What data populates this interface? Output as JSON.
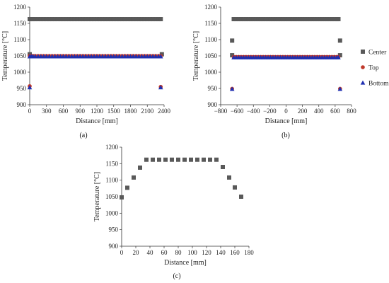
{
  "legend": {
    "position": "right",
    "entries": [
      {
        "name": "Center",
        "marker": "square",
        "color": "#595959"
      },
      {
        "name": "Top",
        "marker": "circle",
        "color": "#c0392b"
      },
      {
        "name": "Bottom",
        "marker": "triangle",
        "color": "#1f2fb0"
      }
    ]
  },
  "chart_data": [
    {
      "type": "scatter",
      "panel": "(a)",
      "title": "",
      "xlabel": "Distance [mm]",
      "ylabel": "Temperature [°C]",
      "xlim": [
        0,
        2400
      ],
      "ylim": [
        900,
        1200
      ],
      "xticks": [
        0,
        300,
        600,
        900,
        1200,
        1500,
        1800,
        2100,
        2400
      ],
      "yticks": [
        900,
        950,
        1000,
        1050,
        1100,
        1150,
        1200
      ],
      "grid": false,
      "series": [
        {
          "name": "Center",
          "marker": "square",
          "color": "#595959",
          "x": [
            0,
            30,
            60,
            100,
            150,
            200,
            250,
            300,
            350,
            400,
            450,
            500,
            550,
            600,
            650,
            700,
            750,
            800,
            850,
            900,
            950,
            1000,
            1050,
            1100,
            1150,
            1200,
            1250,
            1300,
            1350,
            1400,
            1450,
            1500,
            1550,
            1600,
            1650,
            1700,
            1750,
            1800,
            1850,
            1900,
            1950,
            2000,
            2050,
            2100,
            2150,
            2200,
            2250,
            2300,
            2340
          ],
          "y": [
            1163,
            1163,
            1163,
            1163,
            1163,
            1163,
            1163,
            1163,
            1163,
            1163,
            1163,
            1163,
            1163,
            1163,
            1163,
            1163,
            1163,
            1163,
            1163,
            1163,
            1163,
            1163,
            1163,
            1163,
            1163,
            1163,
            1163,
            1163,
            1163,
            1163,
            1163,
            1163,
            1163,
            1163,
            1163,
            1163,
            1163,
            1163,
            1163,
            1163,
            1163,
            1163,
            1163,
            1163,
            1163,
            1163,
            1163,
            1163,
            1163
          ]
        },
        {
          "name": "Center",
          "marker": "square",
          "color": "#595959",
          "x": [
            0,
            2360
          ],
          "y": [
            1055,
            1055
          ]
        },
        {
          "name": "Top",
          "marker": "circle",
          "color": "#c0392b",
          "x": [
            0,
            30,
            60,
            100,
            150,
            200,
            250,
            300,
            350,
            400,
            450,
            500,
            550,
            600,
            650,
            700,
            750,
            800,
            850,
            900,
            950,
            1000,
            1050,
            1100,
            1150,
            1200,
            1250,
            1300,
            1350,
            1400,
            1450,
            1500,
            1550,
            1600,
            1650,
            1700,
            1750,
            1800,
            1850,
            1900,
            1950,
            2000,
            2050,
            2100,
            2150,
            2200,
            2250,
            2300,
            2340,
            0,
            2340
          ],
          "y": [
            1050,
            1050,
            1050,
            1050,
            1050,
            1050,
            1050,
            1050,
            1050,
            1050,
            1050,
            1050,
            1050,
            1050,
            1050,
            1050,
            1050,
            1050,
            1050,
            1050,
            1050,
            1050,
            1050,
            1050,
            1050,
            1050,
            1050,
            1050,
            1050,
            1050,
            1050,
            1050,
            1050,
            1050,
            1050,
            1050,
            1050,
            1050,
            1050,
            1050,
            1050,
            1050,
            1050,
            1050,
            1050,
            1050,
            1050,
            1050,
            1050,
            957,
            955
          ]
        },
        {
          "name": "Bottom",
          "marker": "triangle",
          "color": "#1f2fb0",
          "x": [
            0,
            30,
            60,
            100,
            150,
            200,
            250,
            300,
            350,
            400,
            450,
            500,
            550,
            600,
            650,
            700,
            750,
            800,
            850,
            900,
            950,
            1000,
            1050,
            1100,
            1150,
            1200,
            1250,
            1300,
            1350,
            1400,
            1450,
            1500,
            1550,
            1600,
            1650,
            1700,
            1750,
            1800,
            1850,
            1900,
            1950,
            2000,
            2050,
            2100,
            2150,
            2200,
            2250,
            2300,
            2340,
            0,
            2340
          ],
          "y": [
            1048,
            1048,
            1048,
            1048,
            1048,
            1048,
            1048,
            1048,
            1048,
            1048,
            1048,
            1048,
            1048,
            1048,
            1048,
            1048,
            1048,
            1048,
            1048,
            1048,
            1048,
            1048,
            1048,
            1048,
            1048,
            1048,
            1048,
            1048,
            1048,
            1048,
            1048,
            1048,
            1048,
            1048,
            1048,
            1048,
            1048,
            1048,
            1048,
            1048,
            1048,
            1048,
            1048,
            1048,
            1048,
            1048,
            1048,
            1048,
            1048,
            953,
            953
          ]
        }
      ]
    },
    {
      "type": "scatter",
      "panel": "(b)",
      "title": "",
      "xlabel": "Distance [mm]",
      "ylabel": "Temperature [°C]",
      "xlim": [
        -800,
        800
      ],
      "ylim": [
        900,
        1200
      ],
      "xticks": [
        -800,
        -600,
        -400,
        -200,
        0,
        200,
        400,
        600,
        800
      ],
      "yticks": [
        900,
        950,
        1000,
        1050,
        1100,
        1150,
        1200
      ],
      "grid": false,
      "series": [
        {
          "name": "Center",
          "marker": "square",
          "color": "#595959",
          "x": [
            -640,
            -610,
            -580,
            -550,
            -520,
            -490,
            -460,
            -430,
            -400,
            -370,
            -340,
            -310,
            -280,
            -250,
            -220,
            -190,
            -160,
            -130,
            -100,
            -70,
            -40,
            -10,
            20,
            50,
            80,
            110,
            140,
            170,
            200,
            230,
            260,
            290,
            320,
            350,
            380,
            410,
            440,
            470,
            500,
            530,
            560,
            590,
            620,
            640
          ],
          "y": [
            1163,
            1163,
            1163,
            1163,
            1163,
            1163,
            1163,
            1163,
            1163,
            1163,
            1163,
            1163,
            1163,
            1163,
            1163,
            1163,
            1163,
            1163,
            1163,
            1163,
            1163,
            1163,
            1163,
            1163,
            1163,
            1163,
            1163,
            1163,
            1163,
            1163,
            1163,
            1163,
            1163,
            1163,
            1163,
            1163,
            1163,
            1163,
            1163,
            1163,
            1163,
            1163,
            1163,
            1163
          ]
        },
        {
          "name": "Center",
          "marker": "square",
          "color": "#595959",
          "x": [
            -660,
            660,
            -660,
            660
          ],
          "y": [
            1097,
            1097,
            1052,
            1052
          ]
        },
        {
          "name": "Top",
          "marker": "circle",
          "color": "#c0392b",
          "x": [
            -640,
            -610,
            -580,
            -550,
            -520,
            -490,
            -460,
            -430,
            -400,
            -370,
            -340,
            -310,
            -280,
            -250,
            -220,
            -190,
            -160,
            -130,
            -100,
            -70,
            -40,
            -10,
            20,
            50,
            80,
            110,
            140,
            170,
            200,
            230,
            260,
            290,
            320,
            350,
            380,
            410,
            440,
            470,
            500,
            530,
            560,
            590,
            620,
            640,
            -660,
            660
          ],
          "y": [
            1047,
            1047,
            1047,
            1047,
            1047,
            1047,
            1047,
            1047,
            1047,
            1047,
            1047,
            1047,
            1047,
            1047,
            1047,
            1047,
            1047,
            1047,
            1047,
            1047,
            1047,
            1047,
            1047,
            1047,
            1047,
            1047,
            1047,
            1047,
            1047,
            1047,
            1047,
            1047,
            1047,
            1047,
            1047,
            1047,
            1047,
            1047,
            1047,
            1047,
            1047,
            1047,
            1047,
            1047,
            949,
            949
          ]
        },
        {
          "name": "Bottom",
          "marker": "triangle",
          "color": "#1f2fb0",
          "x": [
            -640,
            -610,
            -580,
            -550,
            -520,
            -490,
            -460,
            -430,
            -400,
            -370,
            -340,
            -310,
            -280,
            -250,
            -220,
            -190,
            -160,
            -130,
            -100,
            -70,
            -40,
            -10,
            20,
            50,
            80,
            110,
            140,
            170,
            200,
            230,
            260,
            290,
            320,
            350,
            380,
            410,
            440,
            470,
            500,
            530,
            560,
            590,
            620,
            640,
            -660,
            660
          ],
          "y": [
            1045,
            1045,
            1045,
            1045,
            1045,
            1045,
            1045,
            1045,
            1045,
            1045,
            1045,
            1045,
            1045,
            1045,
            1045,
            1045,
            1045,
            1045,
            1045,
            1045,
            1045,
            1045,
            1045,
            1045,
            1045,
            1045,
            1045,
            1045,
            1045,
            1045,
            1045,
            1045,
            1045,
            1045,
            1045,
            1045,
            1045,
            1045,
            1045,
            1045,
            1045,
            1045,
            1045,
            1045,
            948,
            948
          ]
        }
      ]
    },
    {
      "type": "scatter",
      "panel": "(c)",
      "title": "",
      "xlabel": "Distance [mm]",
      "ylabel": "Temperature [°C]",
      "xlim": [
        0,
        180
      ],
      "ylim": [
        900,
        1200
      ],
      "xticks": [
        0,
        20,
        40,
        60,
        80,
        100,
        120,
        140,
        160,
        180
      ],
      "yticks": [
        900,
        950,
        1000,
        1050,
        1100,
        1150,
        1200
      ],
      "grid": false,
      "series": [
        {
          "name": "Center",
          "marker": "square",
          "color": "#595959",
          "x": [
            0,
            8,
            17,
            26,
            35,
            44,
            53,
            62,
            71,
            80,
            89,
            98,
            107,
            116,
            125,
            134,
            143,
            152,
            160,
            169
          ],
          "y": [
            1048,
            1077,
            1108,
            1138,
            1162,
            1162,
            1162,
            1162,
            1162,
            1162,
            1162,
            1162,
            1162,
            1162,
            1162,
            1162,
            1140,
            1108,
            1078,
            1050
          ]
        }
      ]
    }
  ]
}
